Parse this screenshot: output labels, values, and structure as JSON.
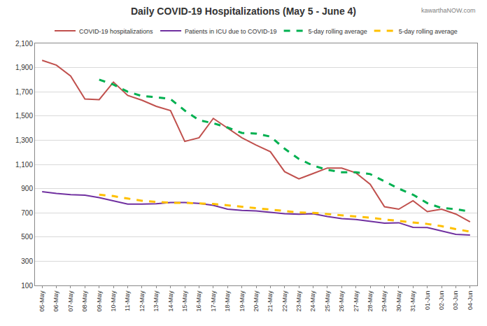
{
  "chart_data": {
    "type": "line",
    "title": "Daily COVID-19 Hospitalizations (May 5 - June 4)",
    "watermark": "kawarthaNOW.com",
    "categories": [
      "05-May",
      "06-May",
      "07-May",
      "08-May",
      "09-May",
      "10-May",
      "11-May",
      "12-May",
      "13-May",
      "14-May",
      "15-May",
      "16-May",
      "17-May",
      "18-May",
      "19-May",
      "20-May",
      "21-May",
      "22-May",
      "23-May",
      "24-May",
      "25-May",
      "26-May",
      "27-May",
      "28-May",
      "29-May",
      "30-May",
      "31-May",
      "01-Jun",
      "02-Jun",
      "03-Jun",
      "04-Jun"
    ],
    "series": [
      {
        "name": "COVID-19 hospitalizations",
        "color": "#c0504d",
        "line_style": "solid",
        "values": [
          1960,
          1920,
          1830,
          1640,
          1635,
          1780,
          1670,
          1630,
          1580,
          1545,
          1290,
          1320,
          1480,
          1400,
          1320,
          1260,
          1205,
          1040,
          980,
          1025,
          1070,
          1070,
          1030,
          935,
          750,
          730,
          800,
          710,
          730,
          690,
          625
        ]
      },
      {
        "name": "Patients in ICU due to COVID-19",
        "color": "#7030a0",
        "line_style": "solid",
        "values": [
          875,
          860,
          850,
          845,
          825,
          800,
          772,
          772,
          775,
          785,
          785,
          778,
          762,
          730,
          720,
          715,
          705,
          693,
          688,
          692,
          670,
          652,
          645,
          628,
          615,
          618,
          580,
          578,
          548,
          522,
          516
        ]
      },
      {
        "name": "5-day rolling average",
        "color": "#00b050",
        "line_style": "dashed",
        "values": [
          null,
          null,
          null,
          null,
          1800,
          1760,
          1700,
          1665,
          1655,
          1640,
          1545,
          1465,
          1440,
          1405,
          1360,
          1355,
          1330,
          1230,
          1145,
          1090,
          1055,
          1035,
          1035,
          1020,
          960,
          900,
          850,
          780,
          740,
          730,
          710
        ]
      },
      {
        "name": "5-day rolling average",
        "color": "#ffc000",
        "line_style": "dashed",
        "values": [
          null,
          null,
          null,
          null,
          850,
          838,
          818,
          800,
          790,
          783,
          782,
          777,
          773,
          762,
          750,
          738,
          724,
          712,
          703,
          700,
          690,
          680,
          672,
          660,
          645,
          632,
          620,
          608,
          590,
          565,
          545
        ]
      }
    ],
    "ylim": [
      100,
      2100
    ],
    "yticks": [
      100,
      300,
      500,
      700,
      900,
      {
        "value": 1100,
        "label": "1,100"
      },
      {
        "value": 1300,
        "label": "1,300"
      },
      {
        "value": 1500,
        "label": "1,500"
      },
      {
        "value": 1700,
        "label": "1,700"
      },
      {
        "value": 1900,
        "label": "1,900"
      },
      {
        "value": 2100,
        "label": "2,100"
      }
    ],
    "grid": true,
    "legend": "top"
  }
}
